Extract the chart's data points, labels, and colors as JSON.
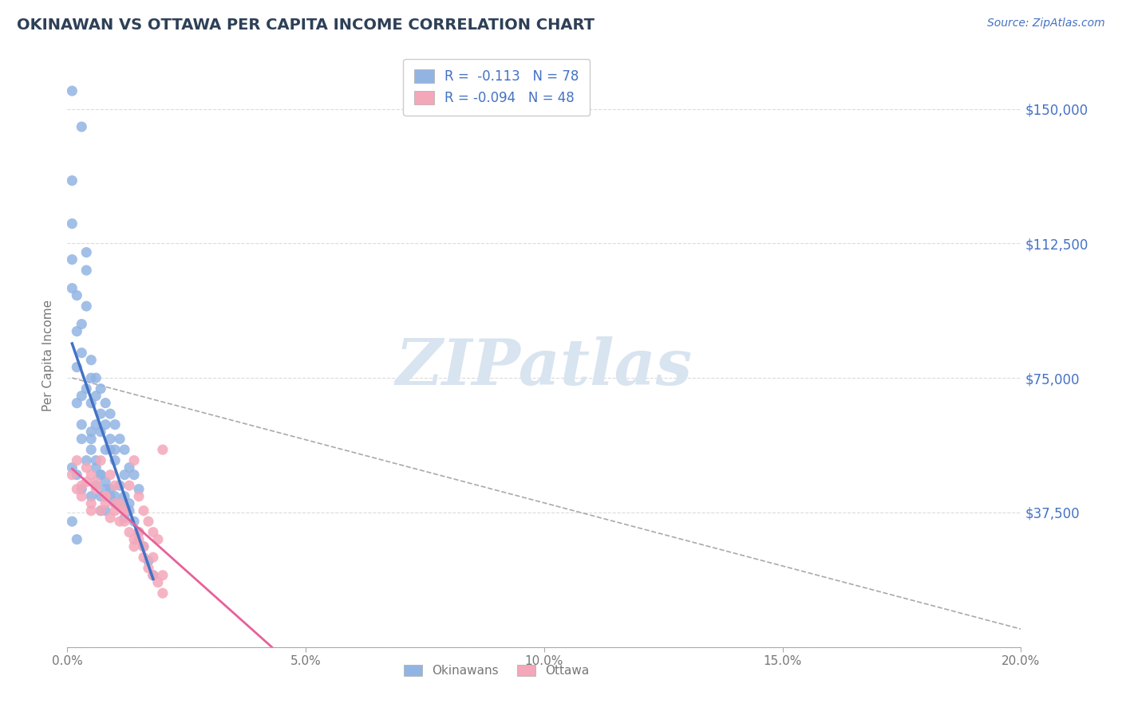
{
  "title": "OKINAWAN VS OTTAWA PER CAPITA INCOME CORRELATION CHART",
  "source": "Source: ZipAtlas.com",
  "ylabel": "Per Capita Income",
  "xlim": [
    0.0,
    0.2
  ],
  "ylim": [
    0,
    162500
  ],
  "yticks": [
    0,
    37500,
    75000,
    112500,
    150000
  ],
  "ytick_labels": [
    "",
    "$37,500",
    "$75,000",
    "$112,500",
    "$150,000"
  ],
  "xticks": [
    0.0,
    0.05,
    0.1,
    0.15,
    0.2
  ],
  "xtick_labels": [
    "0.0%",
    "5.0%",
    "10.0%",
    "15.0%",
    "20.0%"
  ],
  "title_color": "#2E4057",
  "axis_color": "#4472C4",
  "source_color": "#4472C4",
  "okinawan_color": "#92B4E3",
  "ottawa_color": "#F4A7B9",
  "okinawan_line_color": "#4472C4",
  "ottawa_line_color": "#E8609A",
  "watermark_color": "#D8E4F0",
  "watermark": "ZIPatlas",
  "R_okinawan": -0.113,
  "N_okinawan": 78,
  "R_ottawa": -0.094,
  "N_ottawa": 48,
  "okinawan_x": [
    0.001,
    0.001,
    0.001,
    0.001,
    0.002,
    0.002,
    0.002,
    0.003,
    0.003,
    0.003,
    0.003,
    0.004,
    0.004,
    0.004,
    0.005,
    0.005,
    0.005,
    0.005,
    0.006,
    0.006,
    0.006,
    0.007,
    0.007,
    0.007,
    0.007,
    0.008,
    0.008,
    0.008,
    0.009,
    0.009,
    0.009,
    0.01,
    0.01,
    0.01,
    0.011,
    0.011,
    0.012,
    0.012,
    0.013,
    0.013,
    0.014,
    0.015,
    0.001,
    0.001,
    0.002,
    0.002,
    0.003,
    0.003,
    0.004,
    0.005,
    0.005,
    0.006,
    0.006,
    0.007,
    0.007,
    0.008,
    0.008,
    0.009,
    0.009,
    0.01,
    0.01,
    0.011,
    0.012,
    0.012,
    0.013,
    0.014,
    0.015,
    0.016,
    0.017,
    0.018,
    0.001,
    0.003,
    0.002,
    0.004,
    0.005,
    0.006,
    0.007,
    0.008
  ],
  "okinawan_y": [
    130000,
    118000,
    50000,
    35000,
    88000,
    68000,
    48000,
    82000,
    70000,
    58000,
    44000,
    95000,
    72000,
    52000,
    80000,
    68000,
    55000,
    42000,
    75000,
    62000,
    50000,
    72000,
    60000,
    48000,
    38000,
    68000,
    55000,
    44000,
    65000,
    55000,
    42000,
    62000,
    52000,
    40000,
    58000,
    45000,
    55000,
    42000,
    50000,
    40000,
    48000,
    44000,
    108000,
    100000,
    98000,
    78000,
    90000,
    62000,
    110000,
    75000,
    58000,
    70000,
    52000,
    65000,
    48000,
    62000,
    46000,
    58000,
    44000,
    55000,
    42000,
    40000,
    48000,
    36000,
    38000,
    35000,
    32000,
    28000,
    24000,
    20000,
    155000,
    145000,
    30000,
    105000,
    60000,
    45000,
    42000,
    38000
  ],
  "ottawa_x": [
    0.001,
    0.002,
    0.003,
    0.004,
    0.005,
    0.005,
    0.006,
    0.007,
    0.008,
    0.009,
    0.01,
    0.011,
    0.012,
    0.013,
    0.014,
    0.015,
    0.016,
    0.017,
    0.018,
    0.019,
    0.02,
    0.002,
    0.004,
    0.006,
    0.007,
    0.008,
    0.009,
    0.01,
    0.011,
    0.012,
    0.013,
    0.014,
    0.015,
    0.016,
    0.017,
    0.018,
    0.019,
    0.02,
    0.005,
    0.008,
    0.01,
    0.012,
    0.014,
    0.016,
    0.018,
    0.02,
    0.003,
    0.015
  ],
  "ottawa_y": [
    48000,
    52000,
    45000,
    50000,
    48000,
    38000,
    46000,
    52000,
    42000,
    48000,
    45000,
    40000,
    38000,
    45000,
    52000,
    42000,
    38000,
    35000,
    32000,
    30000,
    55000,
    44000,
    46000,
    44000,
    38000,
    42000,
    36000,
    40000,
    35000,
    38000,
    32000,
    28000,
    30000,
    25000,
    22000,
    20000,
    18000,
    15000,
    40000,
    40000,
    38000,
    35000,
    30000,
    28000,
    25000,
    20000,
    42000,
    32000
  ],
  "grid_color": "#CCCCCC",
  "background_color": "#FFFFFF"
}
